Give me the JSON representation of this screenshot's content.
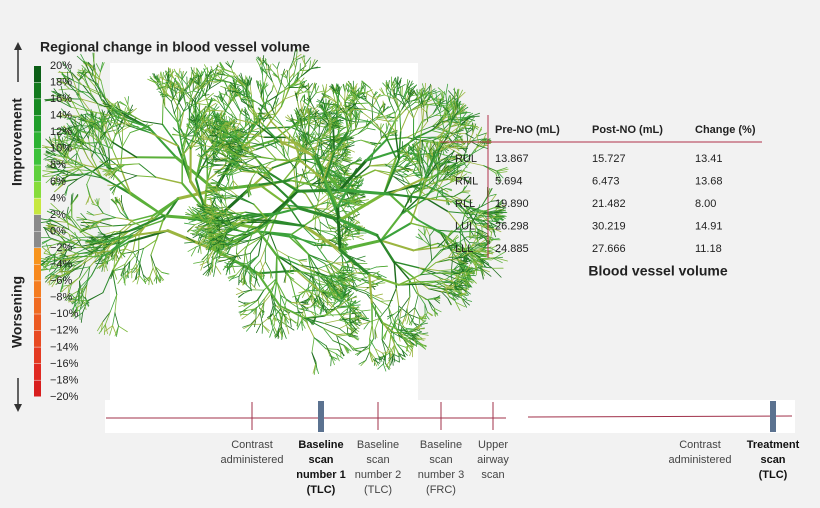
{
  "title": "Regional change in blood vessel volume",
  "scale": {
    "improvement": "Improvement",
    "worsening": "Worsening",
    "labels": [
      "20%",
      "18%",
      "16%",
      "14%",
      "12%",
      "10%",
      "8%",
      "6%",
      "4%",
      "2%",
      "0%",
      "−2%",
      "−4%",
      "−6%",
      "−8%",
      "−10%",
      "−12%",
      "−14%",
      "−16%",
      "−18%",
      "−20%"
    ]
  },
  "table": {
    "headers": [
      "Pre-NO (mL)",
      "Post-NO (mL)",
      "Change (%)"
    ],
    "rows": [
      [
        "RUL",
        "13.867",
        "15.727",
        "13.41"
      ],
      [
        "RML",
        "5.694",
        "6.473",
        "13.68"
      ],
      [
        "RLL",
        "19.890",
        "21.482",
        "8.00"
      ],
      [
        "LUL",
        "26.298",
        "30.219",
        "14.91"
      ],
      [
        "LLL",
        "24.885",
        "27.666",
        "11.18"
      ]
    ],
    "caption": "Blood vessel volume"
  },
  "timeline": [
    {
      "lines": [
        "Contrast",
        "administered"
      ],
      "bold": false
    },
    {
      "lines": [
        "Baseline",
        "scan",
        "number 1",
        "(TLC)"
      ],
      "bold": true
    },
    {
      "lines": [
        "Baseline",
        "scan",
        "number 2",
        "(TLC)"
      ],
      "bold": false
    },
    {
      "lines": [
        "Baseline",
        "scan",
        "number 3",
        "(FRC)"
      ],
      "bold": false
    },
    {
      "lines": [
        "Upper",
        "airway",
        "scan"
      ],
      "bold": false
    },
    {
      "lines": [
        "Contrast",
        "administered"
      ],
      "bold": false
    },
    {
      "lines": [
        "Treatment",
        "scan",
        "(TLC)"
      ],
      "bold": true
    }
  ]
}
